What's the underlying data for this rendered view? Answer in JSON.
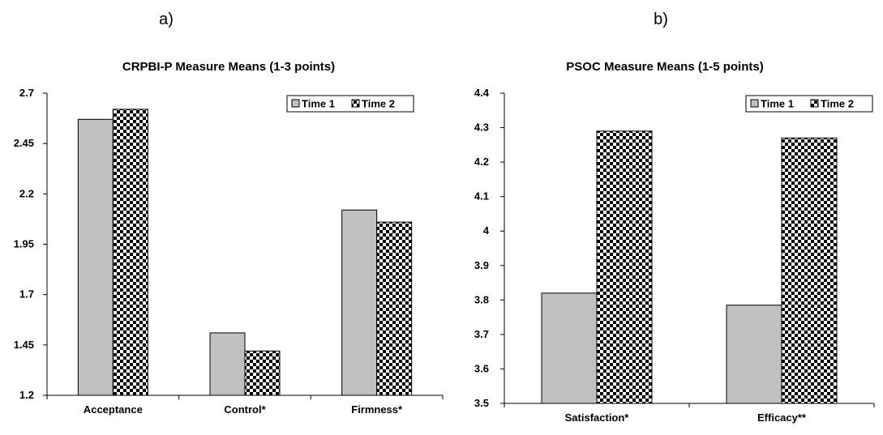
{
  "panels": [
    {
      "label": "a)"
    },
    {
      "label": "b)"
    }
  ],
  "chart_data": [
    {
      "type": "bar",
      "title": "CRPBI-P Measure Means (1-3 points)",
      "categories": [
        "Acceptance",
        "Control*",
        "Firmness*"
      ],
      "series": [
        {
          "name": "Time 1",
          "values": [
            2.57,
            1.51,
            2.12
          ],
          "fill": "gray"
        },
        {
          "name": "Time 2",
          "values": [
            2.62,
            1.42,
            2.06
          ],
          "fill": "checker"
        }
      ],
      "ylim": [
        1.2,
        2.7
      ],
      "yticks": [
        "1.2",
        "1.45",
        "1.7",
        "1.95",
        "2.2",
        "2.45",
        "2.7"
      ],
      "xlabel": "",
      "ylabel": "",
      "legend": "top-right",
      "grid": false
    },
    {
      "type": "bar",
      "title": "PSOC Measure Means (1-5 points)",
      "categories": [
        "Satisfaction*",
        "Efficacy**"
      ],
      "series": [
        {
          "name": "Time 1",
          "values": [
            3.82,
            3.785
          ],
          "fill": "gray"
        },
        {
          "name": "Time 2",
          "values": [
            4.29,
            4.27
          ],
          "fill": "checker"
        }
      ],
      "ylim": [
        3.5,
        4.4
      ],
      "yticks": [
        "3.5",
        "3.6",
        "3.7",
        "3.8",
        "3.9",
        "4",
        "4.1",
        "4.2",
        "4.3",
        "4.4"
      ],
      "xlabel": "",
      "ylabel": "",
      "legend": "top-right",
      "grid": false
    }
  ],
  "colors": {
    "time1_fill": "#c0c0c0",
    "checker_dark": "#000000",
    "checker_light": "#ffffff"
  }
}
